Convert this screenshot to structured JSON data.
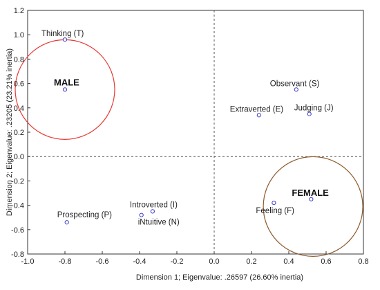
{
  "chart_data": {
    "type": "scatter",
    "xlabel": "Dimension     1; Eigenvalue: .26597 (26.60% inertia)",
    "ylabel": "Dimension 2; Eigenvalue: .23205 (23.21% inertia)",
    "xlim": [
      -1.0,
      0.8
    ],
    "ylim": [
      -0.8,
      1.2
    ],
    "xticks": [
      "-1.0",
      "-0.8",
      "-0.6",
      "-0.4",
      "-0.2",
      "0.0",
      "0.2",
      "0.4",
      "0.6",
      "0.8"
    ],
    "yticks": [
      "1.2",
      "1.0",
      "0.8",
      "0.6",
      "0.4",
      "0.2",
      "0.0",
      "-0.2",
      "-0.4",
      "-0.6",
      "-0.8"
    ],
    "reference_lines": {
      "x": 0.0,
      "y": 0.0,
      "style": "dashed"
    },
    "point_color": "#3b3bc8",
    "points": [
      {
        "label": "Thinking (T)",
        "x": -0.8,
        "y": 0.96
      },
      {
        "label": "MALE",
        "x": -0.8,
        "y": 0.55,
        "group": true
      },
      {
        "label": "Observant (S)",
        "x": 0.44,
        "y": 0.55
      },
      {
        "label": "Extraverted (E)",
        "x": 0.24,
        "y": 0.34
      },
      {
        "label": "Judging (J)",
        "x": 0.51,
        "y": 0.35
      },
      {
        "label": "FEMALE",
        "x": 0.52,
        "y": -0.35,
        "group": true
      },
      {
        "label": "Feeling (F)",
        "x": 0.32,
        "y": -0.38
      },
      {
        "label": "Introverted (I)",
        "x": -0.33,
        "y": -0.45
      },
      {
        "label": "iNtuitive (N)",
        "x": -0.39,
        "y": -0.48
      },
      {
        "label": "Prospecting (P)",
        "x": -0.79,
        "y": -0.54
      }
    ],
    "circles": [
      {
        "group": "MALE",
        "color": "#e53935"
      },
      {
        "group": "FEMALE",
        "color": "#8d5a2b"
      }
    ]
  }
}
